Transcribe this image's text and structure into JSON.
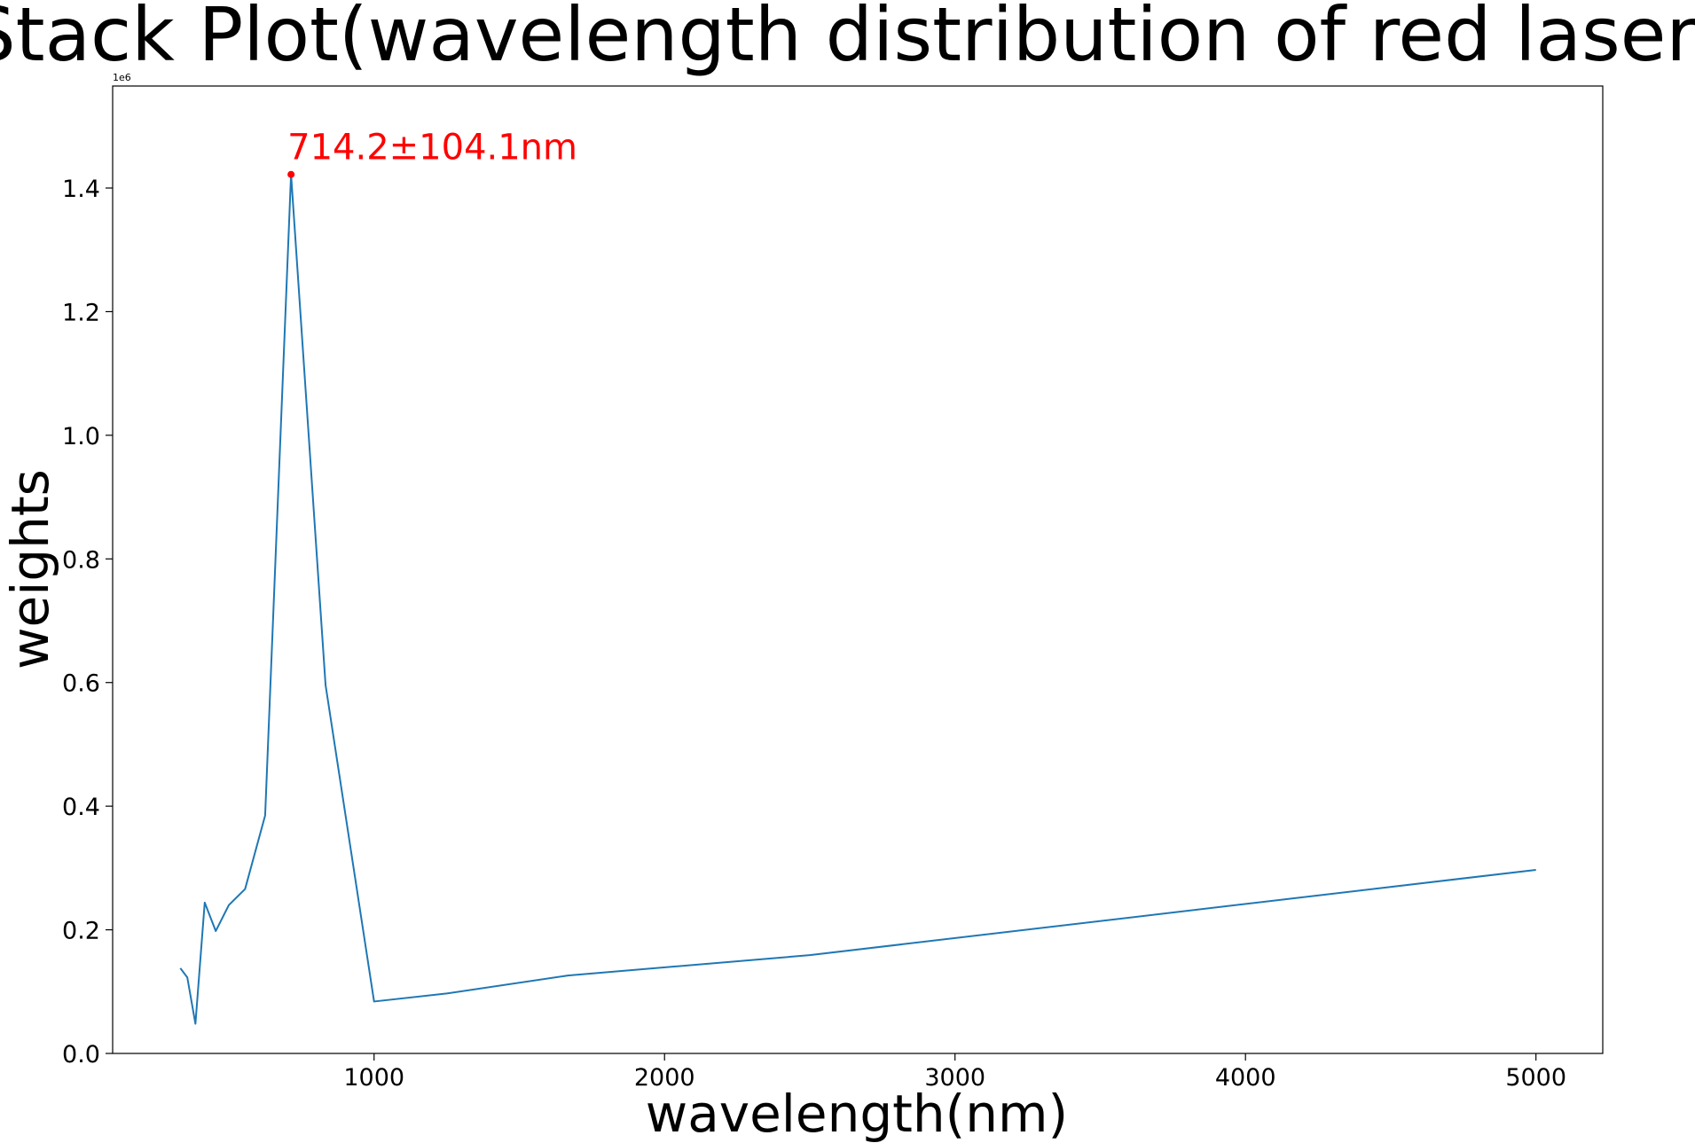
{
  "chart_data": {
    "type": "line",
    "title": "Stack Plot(wavelength distribution of red laser)",
    "xlabel": "wavelength(nm)",
    "ylabel": "weights",
    "y_offset_text": "1e6",
    "xlim": [
      100,
      5230
    ],
    "ylim": [
      0,
      1.565
    ],
    "x_ticks": [
      1000,
      2000,
      3000,
      4000,
      5000
    ],
    "x_tick_labels": [
      "1000",
      "2000",
      "3000",
      "4000",
      "5000"
    ],
    "y_ticks": [
      0.0,
      0.2,
      0.4,
      0.6,
      0.8,
      1.0,
      1.2,
      1.4
    ],
    "y_tick_labels": [
      "0.0",
      "0.2",
      "0.4",
      "0.6",
      "0.8",
      "1.0",
      "1.2",
      "1.4"
    ],
    "grid": false,
    "series": [
      {
        "color": "#1f77b4",
        "x": [
          333,
          357,
          385,
          417,
          455,
          500,
          556,
          625,
          714.2,
          833,
          1000,
          1250,
          1667,
          2500,
          5000
        ],
        "y": [
          0.138,
          0.123,
          0.048,
          0.244,
          0.198,
          0.24,
          0.266,
          0.385,
          1.422,
          0.596,
          0.084,
          0.097,
          0.126,
          0.159,
          0.297
        ]
      }
    ],
    "annotations": [
      {
        "text": "714.2±104.1nm",
        "x": 714.2,
        "y": 1.422,
        "color": "#ff0000"
      }
    ]
  }
}
